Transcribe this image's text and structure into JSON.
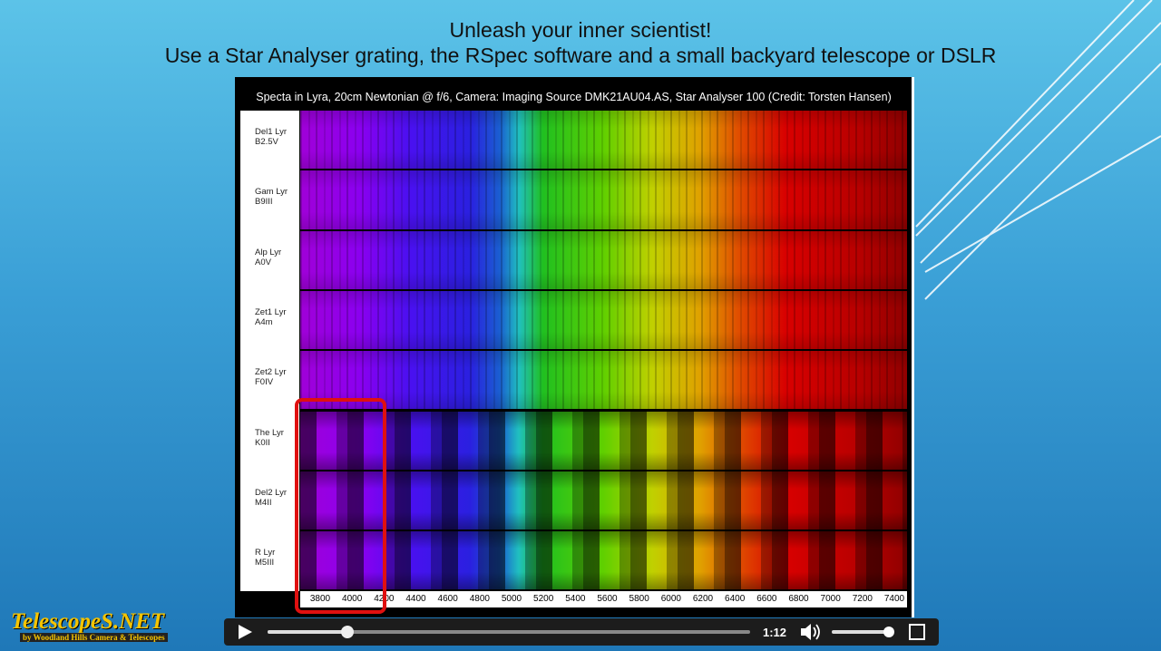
{
  "slide": {
    "title_lines": [
      "Unleash your inner scientist!",
      "Use a Star Analyser grating, the RSpec software and a small  backyard telescope or DSLR"
    ]
  },
  "figure": {
    "caption": "Specta in Lyra,   20cm Newtonian @ f/6, Camera: Imaging Source DMK21AU04.AS, Star Analyser 100 (Credit: Torsten Hansen)",
    "stars": [
      {
        "name": "Del1 Lyr",
        "type": "B2.5V"
      },
      {
        "name": "Gam Lyr",
        "type": "B9III"
      },
      {
        "name": "Alp Lyr",
        "type": "A0V"
      },
      {
        "name": "Zet1 Lyr",
        "type": "A4m"
      },
      {
        "name": "Zet2 Lyr",
        "type": "F0IV"
      },
      {
        "name": "The Lyr",
        "type": "K0II"
      },
      {
        "name": "Del2 Lyr",
        "type": "M4II"
      },
      {
        "name": "R Lyr",
        "type": "M5III"
      }
    ],
    "wavelength_ticks": [
      3800,
      4000,
      4200,
      4400,
      4600,
      4800,
      5000,
      5200,
      5400,
      5600,
      5800,
      6000,
      6200,
      6400,
      6600,
      6800,
      7000,
      7200,
      7400
    ]
  },
  "logo": {
    "name": "TelescopeS.NET",
    "byline": "by Woodland Hills Camera & Telescopes"
  },
  "player": {
    "time": "1:12"
  }
}
